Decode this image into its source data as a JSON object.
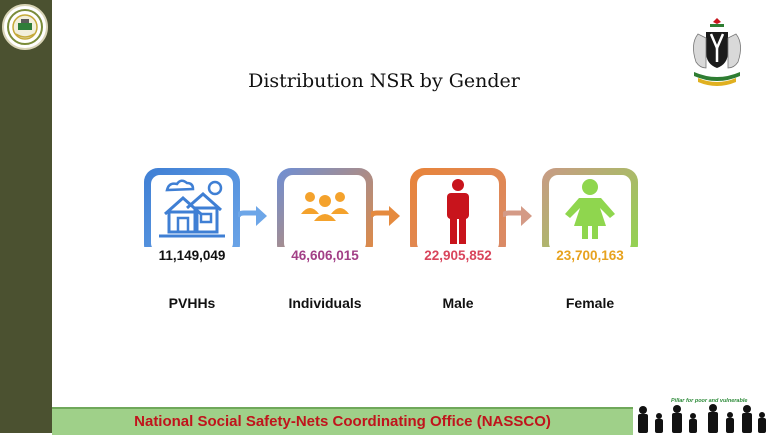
{
  "slide": {
    "title": "Distribution NSR by Gender",
    "footer_text": "National Social Safety-Nets Coordinating Office (NASSCO)",
    "pillar_tagline": "Pillar for poor and vulnerable"
  },
  "stats": [
    {
      "label": "PVHHs",
      "value": "11,149,049",
      "value_color": "#111111",
      "icon": "house-icon"
    },
    {
      "label": "Individuals",
      "value": "46,606,015",
      "value_color": "#a23f86",
      "icon": "people-group-icon"
    },
    {
      "label": "Male",
      "value": "22,905,852",
      "value_color": "#d9455c",
      "icon": "male-icon"
    },
    {
      "label": "Female",
      "value": "23,700,163",
      "value_color": "#e7a21e",
      "icon": "female-icon"
    }
  ],
  "colors": {
    "sidebar": "#4b5130",
    "footer_bg": "#9fd089",
    "footer_text": "#c0141c",
    "male": "#c8141c",
    "female": "#8fd64e",
    "individuals": "#f4a22c",
    "house": "#3f7fd4"
  }
}
